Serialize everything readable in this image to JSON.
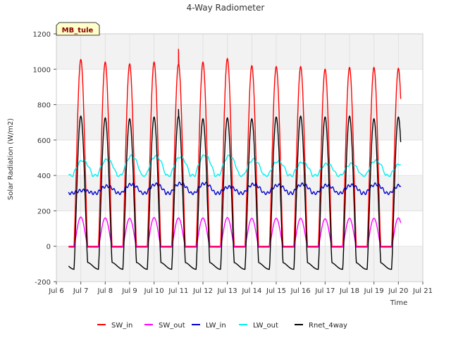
{
  "chart_data": {
    "type": "line",
    "title": "4-Way Radiometer",
    "xlabel": "Time",
    "ylabel": "Solar Radiation (W/m2)",
    "badge": "MB_tule",
    "xlim": [
      6,
      21
    ],
    "ylim": [
      -200,
      1200
    ],
    "x_ticks": [
      "Jul 6",
      "Jul 7",
      "Jul 8",
      "Jul 9",
      "Jul 10",
      "Jul 11",
      "Jul 12",
      "Jul 13",
      "Jul 14",
      "Jul 15",
      "Jul 16",
      "Jul 17",
      "Jul 18",
      "Jul 19",
      "Jul 20",
      "Jul 21"
    ],
    "y_ticks": [
      -200,
      0,
      200,
      400,
      600,
      800,
      1000,
      1200
    ],
    "grid": true,
    "legend_position": "bottom",
    "data_start_day": 6.5,
    "data_end_day": 20.1,
    "day_x": [
      7,
      8,
      9,
      10,
      11,
      12,
      13,
      14,
      15,
      16,
      17,
      18,
      19,
      20
    ],
    "series": [
      {
        "name": "SW_in",
        "color": "#ff0000",
        "daily_peak": [
          1055,
          1040,
          1030,
          1040,
          1030,
          1040,
          1060,
          1020,
          1015,
          1015,
          1000,
          1010,
          1010,
          1005
        ],
        "night": 0,
        "spikes": [
          {
            "x": 11.0,
            "y": 1115
          },
          {
            "x": 11.05,
            "y": 970
          }
        ]
      },
      {
        "name": "SW_out",
        "color": "#ff00ff",
        "daily_peak": [
          165,
          160,
          158,
          162,
          160,
          160,
          162,
          158,
          158,
          158,
          155,
          158,
          158,
          160
        ],
        "night": -5
      },
      {
        "name": "LW_in",
        "color": "#0000cc",
        "daily_peak": [
          315,
          340,
          350,
          350,
          355,
          355,
          335,
          350,
          345,
          350,
          345,
          345,
          350,
          345
        ],
        "night": 300
      },
      {
        "name": "LW_out",
        "color": "#00eeee",
        "daily_peak": [
          485,
          490,
          510,
          510,
          505,
          515,
          510,
          490,
          480,
          475,
          465,
          465,
          485,
          465
        ],
        "night": 400
      },
      {
        "name": "Rnet_4way",
        "color": "#000000",
        "daily_peak": [
          735,
          725,
          720,
          730,
          735,
          720,
          725,
          720,
          730,
          735,
          730,
          735,
          720,
          730
        ],
        "night": -110,
        "spikes": [
          {
            "x": 11.0,
            "y": 775
          }
        ]
      }
    ]
  }
}
